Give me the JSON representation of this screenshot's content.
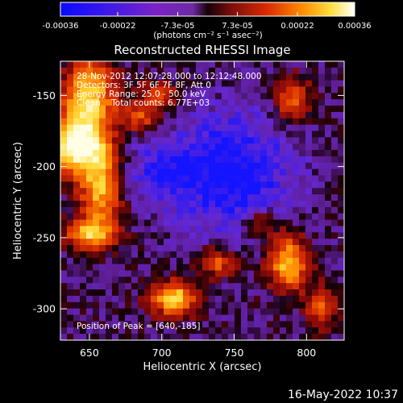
{
  "chart_data": {
    "type": "heatmap",
    "title": "Reconstructed RHESSI Image",
    "xlabel": "Heliocentric X (arcsec)",
    "ylabel": "Heliocentric Y (arcsec)",
    "xlim": [
      630,
      826
    ],
    "ylim": [
      -322,
      -126
    ],
    "x_ticks": [
      "650",
      "700",
      "750",
      "800"
    ],
    "x_tick_values": [
      650,
      700,
      750,
      800
    ],
    "y_ticks": [
      "-150",
      "-200",
      "-250",
      "-300"
    ],
    "y_tick_values": [
      -150,
      -200,
      -250,
      -300
    ],
    "colorbar": {
      "ticks": [
        "-0.00036",
        "-0.00022",
        "-7.3e-05",
        "7.3e-05",
        "0.00022",
        "0.00036"
      ],
      "tick_values": [
        -0.00036,
        -0.00022,
        -7.3e-05,
        7.3e-05,
        0.00022,
        0.00036
      ],
      "range": [
        -0.00036,
        0.00036
      ],
      "unit_label": "(photons cm⁻² s⁻¹ asec⁻²)"
    },
    "annotations": [
      "28-Nov-2012 12:07:28.000 to 12:12:48.000",
      "Detectors: 3F 5F 6F 7F 8F, Att 0",
      "Energy Range: 25.0 - 50.0 keV",
      "Clean    Total counts: 6.77E+03"
    ],
    "peak_label": "Position of Peak = [640,-185]",
    "peak_position": [
      640,
      -185
    ]
  },
  "footer": {
    "timestamp": "16-May-2022 10:37"
  }
}
